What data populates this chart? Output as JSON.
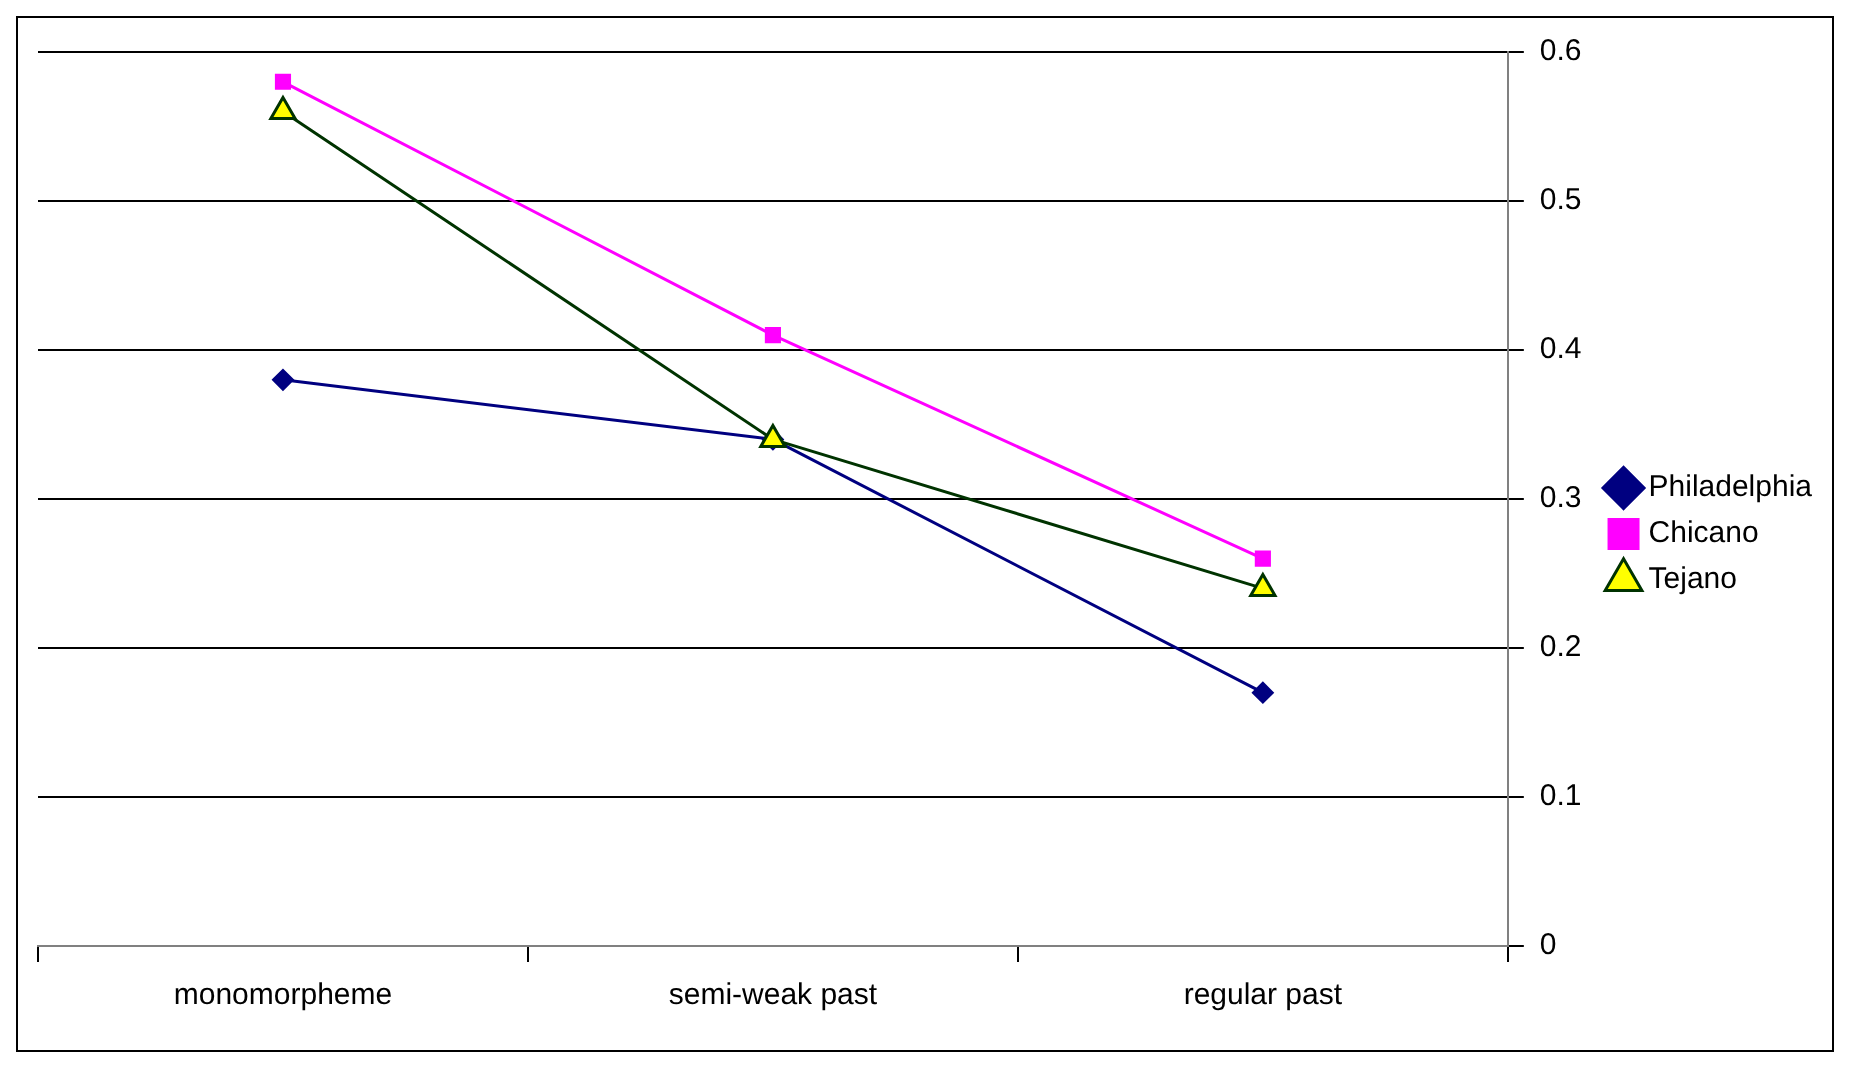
{
  "chart_data": {
    "type": "line",
    "categories": [
      "monomorpheme",
      "semi-weak past",
      "regular past"
    ],
    "series": [
      {
        "name": "Philadelphia",
        "color": "#000080",
        "values": [
          0.38,
          0.34,
          0.17
        ],
        "marker": "diamond"
      },
      {
        "name": "Chicano",
        "color": "#ff00ff",
        "values": [
          0.58,
          0.41,
          0.26
        ],
        "marker": "square"
      },
      {
        "name": "Tejano",
        "color": "#003300",
        "values": [
          0.56,
          0.34,
          0.24
        ],
        "marker": "triangle"
      }
    ],
    "ylim": [
      0,
      0.6
    ],
    "yticks": [
      0,
      0.1,
      0.2,
      0.3,
      0.4,
      0.5,
      0.6
    ],
    "grid": "y",
    "legend": "right"
  }
}
